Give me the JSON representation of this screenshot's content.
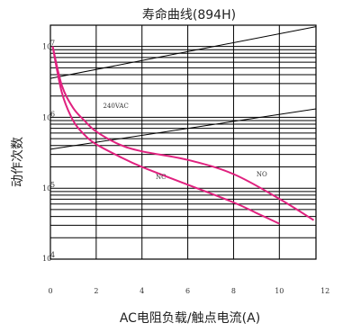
{
  "chart_data": {
    "type": "line",
    "title": "寿命曲线(894H)",
    "xlabel": "AC电阻负载/触点电流(A)",
    "ylabel": "动作次数",
    "xlim": [
      0,
      11.6
    ],
    "x_ticks": [
      "0",
      "2",
      "4",
      "6",
      "8",
      "10",
      "12"
    ],
    "y_scale": "log",
    "ylim_exp": [
      4,
      7.3
    ],
    "y_tick_labels": [
      {
        "base": "10",
        "exp": "7"
      },
      {
        "base": "10",
        "exp": "6"
      },
      {
        "base": "10",
        "exp": "5"
      },
      {
        "base": "10",
        "exp": "4"
      }
    ],
    "annotations": [
      {
        "text": "240VAC",
        "x": 2.3,
        "y_exp": 6.13
      },
      {
        "text": "NC",
        "x": 4.6,
        "y_exp": 5.13
      },
      {
        "text": "NO",
        "x": 9.0,
        "y_exp": 5.17
      }
    ],
    "series": [
      {
        "name": "NO",
        "x": [
          0.1,
          0.5,
          1.0,
          1.5,
          2.0,
          3.0,
          4.0,
          6.0,
          8.0,
          10.0,
          11.5
        ],
        "y_exp": [
          7.0,
          6.45,
          6.13,
          5.95,
          5.8,
          5.62,
          5.52,
          5.4,
          5.2,
          4.85,
          4.55
        ]
      },
      {
        "name": "NC",
        "x": [
          0.1,
          0.5,
          1.0,
          1.5,
          2.0,
          3.0,
          4.0,
          6.0,
          8.0,
          9.0,
          10.0
        ],
        "y_exp": [
          7.0,
          6.35,
          5.95,
          5.75,
          5.62,
          5.45,
          5.3,
          5.05,
          4.8,
          4.65,
          4.5
        ]
      }
    ],
    "reference_lines": [
      {
        "x": [
          0,
          11.6
        ],
        "y_exp": [
          6.55,
          7.28
        ]
      },
      {
        "x": [
          0,
          11.6
        ],
        "y_exp": [
          5.55,
          6.12
        ]
      }
    ]
  }
}
